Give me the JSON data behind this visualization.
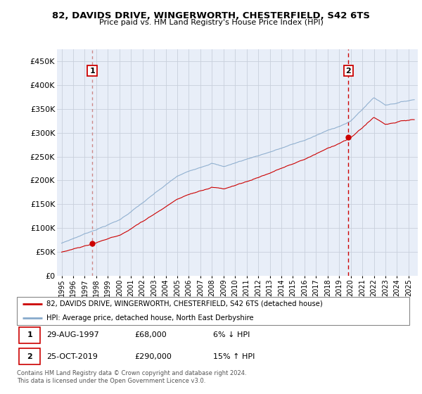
{
  "title": "82, DAVIDS DRIVE, WINGERWORTH, CHESTERFIELD, S42 6TS",
  "subtitle": "Price paid vs. HM Land Registry's House Price Index (HPI)",
  "legend_line1": "82, DAVIDS DRIVE, WINGERWORTH, CHESTERFIELD, S42 6TS (detached house)",
  "legend_line2": "HPI: Average price, detached house, North East Derbyshire",
  "annotation1_date": "29-AUG-1997",
  "annotation1_price": "£68,000",
  "annotation1_hpi": "6% ↓ HPI",
  "annotation2_date": "25-OCT-2019",
  "annotation2_price": "£290,000",
  "annotation2_hpi": "15% ↑ HPI",
  "footnote": "Contains HM Land Registry data © Crown copyright and database right 2024.\nThis data is licensed under the Open Government Licence v3.0.",
  "ylabel_ticks": [
    "£0",
    "£50K",
    "£100K",
    "£150K",
    "£200K",
    "£250K",
    "£300K",
    "£350K",
    "£400K",
    "£450K"
  ],
  "ylabel_values": [
    0,
    50000,
    100000,
    150000,
    200000,
    250000,
    300000,
    350000,
    400000,
    450000
  ],
  "ylim": [
    0,
    475000
  ],
  "sale1_year": 1997.65,
  "sale1_price": 68000,
  "sale2_year": 2019.8,
  "sale2_price": 290000,
  "red_line_color": "#cc0000",
  "blue_line_color": "#88aacc",
  "sale1_dashed_color": "#cc9999",
  "sale2_dashed_color": "#cc0000",
  "plot_bg_color": "#e8eef8"
}
